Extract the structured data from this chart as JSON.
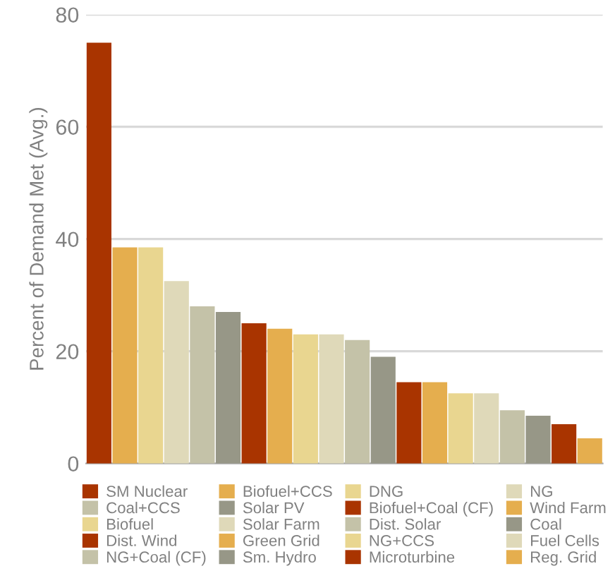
{
  "chart_data": {
    "type": "bar",
    "ylabel": "Percent of Demand Met (Avg.)",
    "categories": [
      null,
      null,
      null,
      null,
      null,
      null,
      null,
      null,
      null,
      null,
      null,
      null,
      null,
      null,
      null,
      null,
      null,
      null,
      null,
      null
    ],
    "series": [
      {
        "name": "SM Nuclear",
        "color": "#a93400",
        "values": [
          75,
          null,
          null,
          null,
          null,
          null,
          null,
          null,
          null,
          null,
          null,
          null,
          null,
          null,
          null,
          null,
          null,
          null,
          null,
          null
        ]
      },
      {
        "name": "Biofuel+CCS",
        "color": "#e5ae4e",
        "values": [
          null,
          38.5,
          null,
          null,
          null,
          null,
          null,
          null,
          null,
          null,
          null,
          null,
          null,
          null,
          null,
          null,
          null,
          null,
          null,
          null
        ]
      },
      {
        "name": "DNG",
        "color": "#e9d690",
        "values": [
          null,
          null,
          38.5,
          null,
          null,
          null,
          null,
          null,
          null,
          null,
          null,
          null,
          null,
          null,
          null,
          null,
          null,
          null,
          null,
          null
        ]
      },
      {
        "name": "NG",
        "color": "#dfd9b9",
        "values": [
          null,
          null,
          null,
          32.5,
          null,
          null,
          null,
          null,
          null,
          null,
          null,
          null,
          null,
          null,
          null,
          null,
          null,
          null,
          null,
          null
        ]
      },
      {
        "name": "Coal+CCS",
        "color": "#c4c2a8",
        "values": [
          null,
          null,
          null,
          null,
          28,
          null,
          null,
          null,
          null,
          null,
          null,
          null,
          null,
          null,
          null,
          null,
          null,
          null,
          null,
          null
        ]
      },
      {
        "name": "Solar PV",
        "color": "#979787",
        "values": [
          null,
          null,
          null,
          null,
          null,
          27,
          null,
          null,
          null,
          null,
          null,
          null,
          null,
          null,
          null,
          null,
          null,
          null,
          null,
          null
        ]
      },
      {
        "name": "Biofuel+Coal (CF)",
        "color": "#a93400",
        "values": [
          null,
          null,
          null,
          null,
          null,
          null,
          25,
          null,
          null,
          null,
          null,
          null,
          null,
          null,
          null,
          null,
          null,
          null,
          null,
          null
        ]
      },
      {
        "name": "Wind Farm",
        "color": "#e5ae4e",
        "values": [
          null,
          null,
          null,
          null,
          null,
          null,
          null,
          24,
          null,
          null,
          null,
          null,
          null,
          null,
          null,
          null,
          null,
          null,
          null,
          null
        ]
      },
      {
        "name": "Biofuel",
        "color": "#e9d690",
        "values": [
          null,
          null,
          null,
          null,
          null,
          null,
          null,
          null,
          23,
          null,
          null,
          null,
          null,
          null,
          null,
          null,
          null,
          null,
          null,
          null
        ]
      },
      {
        "name": "Solar Farm",
        "color": "#dfd9b9",
        "values": [
          null,
          null,
          null,
          null,
          null,
          null,
          null,
          null,
          null,
          23,
          null,
          null,
          null,
          null,
          null,
          null,
          null,
          null,
          null,
          null
        ]
      },
      {
        "name": "Dist. Solar",
        "color": "#c4c2a8",
        "values": [
          null,
          null,
          null,
          null,
          null,
          null,
          null,
          null,
          null,
          null,
          22,
          null,
          null,
          null,
          null,
          null,
          null,
          null,
          null,
          null
        ]
      },
      {
        "name": "Coal",
        "color": "#979787",
        "values": [
          null,
          null,
          null,
          null,
          null,
          null,
          null,
          null,
          null,
          null,
          null,
          19,
          null,
          null,
          null,
          null,
          null,
          null,
          null,
          null
        ]
      },
      {
        "name": "Dist. Wind",
        "color": "#a93400",
        "values": [
          null,
          null,
          null,
          null,
          null,
          null,
          null,
          null,
          null,
          null,
          null,
          null,
          14.5,
          null,
          null,
          null,
          null,
          null,
          null,
          null
        ]
      },
      {
        "name": "Green Grid",
        "color": "#e5ae4e",
        "values": [
          null,
          null,
          null,
          null,
          null,
          null,
          null,
          null,
          null,
          null,
          null,
          null,
          null,
          14.5,
          null,
          null,
          null,
          null,
          null,
          null
        ]
      },
      {
        "name": "NG+CCS",
        "color": "#e9d690",
        "values": [
          null,
          null,
          null,
          null,
          null,
          null,
          null,
          null,
          null,
          null,
          null,
          null,
          null,
          null,
          12.5,
          null,
          null,
          null,
          null,
          null
        ]
      },
      {
        "name": "Fuel Cells",
        "color": "#dfd9b9",
        "values": [
          null,
          null,
          null,
          null,
          null,
          null,
          null,
          null,
          null,
          null,
          null,
          null,
          null,
          null,
          null,
          12.5,
          null,
          null,
          null,
          null
        ]
      },
      {
        "name": "NG+Coal (CF)",
        "color": "#c4c2a8",
        "values": [
          null,
          null,
          null,
          null,
          null,
          null,
          null,
          null,
          null,
          null,
          null,
          null,
          null,
          null,
          null,
          null,
          9.5,
          null,
          null,
          null
        ]
      },
      {
        "name": "Sm. Hydro",
        "color": "#979787",
        "values": [
          null,
          null,
          null,
          null,
          null,
          null,
          null,
          null,
          null,
          null,
          null,
          null,
          null,
          null,
          null,
          null,
          null,
          8.5,
          null,
          null
        ]
      },
      {
        "name": "Microturbine",
        "color": "#a93400",
        "values": [
          null,
          null,
          null,
          null,
          null,
          null,
          null,
          null,
          null,
          null,
          null,
          null,
          null,
          null,
          null,
          null,
          null,
          null,
          7,
          null
        ]
      },
      {
        "name": "Reg. Grid",
        "color": "#e5ae4e",
        "values": [
          null,
          null,
          null,
          null,
          null,
          null,
          null,
          null,
          null,
          null,
          null,
          null,
          null,
          null,
          null,
          null,
          null,
          null,
          null,
          4.5
        ]
      }
    ],
    "ylim": [
      0,
      80
    ],
    "yticks": [
      0,
      20,
      40,
      60,
      80
    ],
    "grid": "y",
    "legend": "bottom",
    "tick_labels": "y"
  }
}
